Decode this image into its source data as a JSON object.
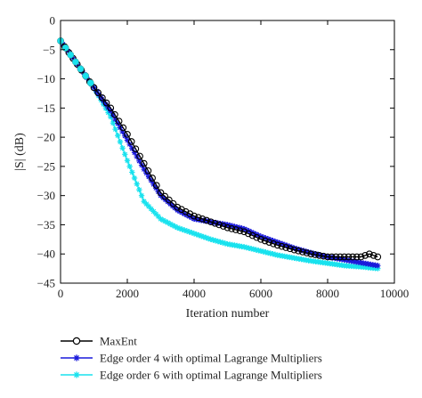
{
  "chart_data": {
    "type": "line",
    "xlabel": "Iteration number",
    "ylabel": "|S| (dB)",
    "xlim": [
      0,
      10000
    ],
    "ylim": [
      -45,
      0
    ],
    "xticks": [
      0,
      2000,
      4000,
      6000,
      8000,
      10000
    ],
    "yticks": [
      0,
      -5,
      -10,
      -15,
      -20,
      -25,
      -30,
      -35,
      -40,
      -45
    ],
    "grid": false,
    "legend_position": "below",
    "series": [
      {
        "name": "MaxEnt",
        "color": "#000000",
        "marker": "open-circle",
        "x": [
          0,
          500,
          1000,
          1500,
          2000,
          2500,
          3000,
          3500,
          4000,
          4500,
          5000,
          5500,
          6000,
          6500,
          7000,
          7500,
          8000,
          8500,
          9000,
          9250,
          9500
        ],
        "y": [
          -3.5,
          -7.5,
          -11.5,
          -15.0,
          -19.5,
          -24.5,
          -29.5,
          -32.0,
          -33.5,
          -34.5,
          -35.5,
          -36.2,
          -37.5,
          -38.5,
          -39.3,
          -40.0,
          -40.5,
          -40.5,
          -40.5,
          -40.0,
          -40.5
        ]
      },
      {
        "name": "Edge order 4 with optimal Lagrange Multipliers",
        "color": "#1a1adb",
        "marker": "star",
        "x": [
          0,
          500,
          1000,
          1500,
          2000,
          2500,
          3000,
          3500,
          4000,
          4500,
          5000,
          5500,
          6000,
          6500,
          7000,
          7500,
          8000,
          8500,
          9000,
          9500
        ],
        "y": [
          -3.5,
          -7.5,
          -11.5,
          -15.5,
          -20.5,
          -25.5,
          -30.0,
          -32.5,
          -34.0,
          -34.5,
          -35.0,
          -35.7,
          -37.0,
          -38.0,
          -39.0,
          -39.8,
          -40.5,
          -41.0,
          -41.5,
          -42.0
        ]
      },
      {
        "name": "Edge order 6 with optimal Lagrange Multipliers",
        "color": "#18e2ee",
        "marker": "star",
        "x": [
          0,
          500,
          1000,
          1500,
          2000,
          2500,
          3000,
          3500,
          4000,
          4500,
          5000,
          5500,
          6000,
          6500,
          7000,
          7500,
          8000,
          8500,
          9000,
          9500
        ],
        "y": [
          -3.5,
          -7.5,
          -11.5,
          -16.5,
          -24.0,
          -31.0,
          -34.0,
          -35.5,
          -36.5,
          -37.5,
          -38.3,
          -38.8,
          -39.5,
          -40.2,
          -40.7,
          -41.2,
          -41.6,
          -42.0,
          -42.2,
          -42.5
        ]
      }
    ]
  }
}
